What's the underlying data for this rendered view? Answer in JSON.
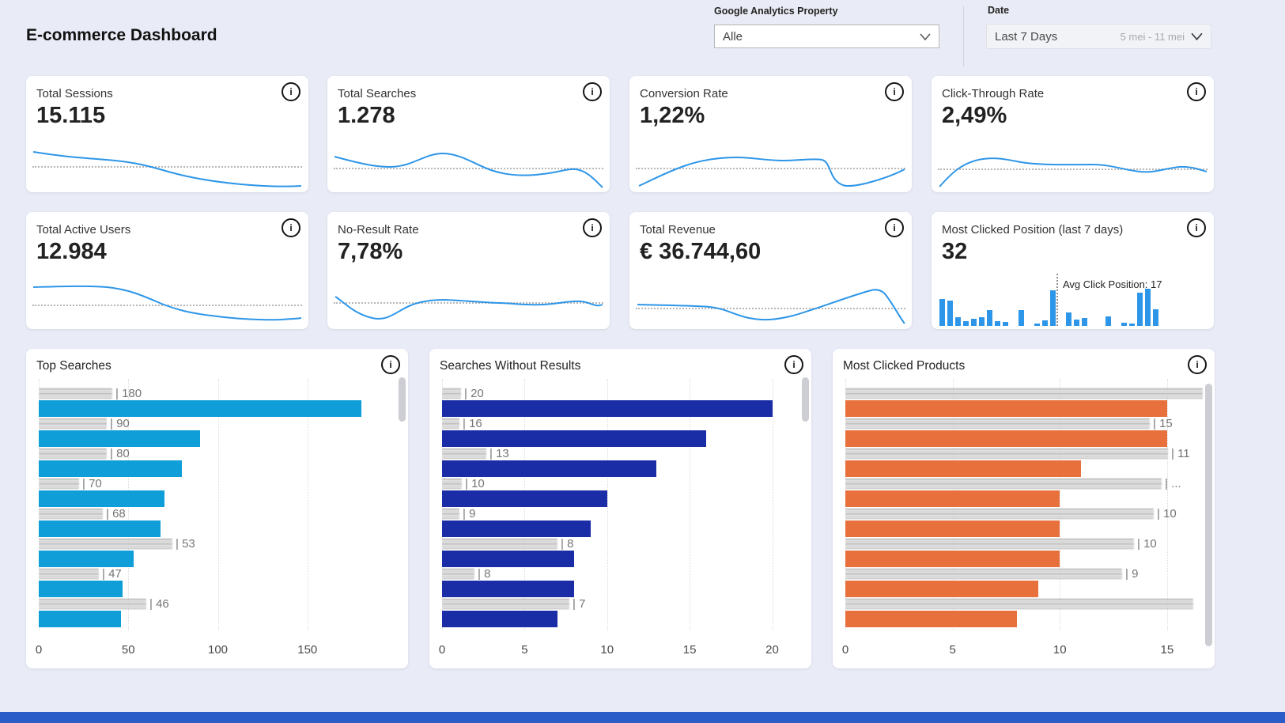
{
  "header": {
    "title": "E-commerce Dashboard",
    "property_filter": {
      "label": "Google Analytics Property",
      "value": "Alle"
    },
    "date_filter": {
      "label": "Date",
      "value": "Last 7 Days",
      "range": "5 mei - 11 mei"
    }
  },
  "kpis": [
    {
      "title": "Total Sessions",
      "value": "15.115"
    },
    {
      "title": "Total Searches",
      "value": "1.278"
    },
    {
      "title": "Conversion Rate",
      "value": "1,22%"
    },
    {
      "title": "Click-Through Rate",
      "value": "2,49%"
    },
    {
      "title": "Total Active Users",
      "value": "12.984"
    },
    {
      "title": "No-Result Rate",
      "value": "7,78%"
    },
    {
      "title": "Total Revenue",
      "value": "€ 36.744,60"
    },
    {
      "title": "Most Clicked Position (last 7 days)",
      "value": "32",
      "annotation": "Avg Click Position: 17"
    }
  ],
  "colors": {
    "sparkline": "#2e96e8",
    "top_searches_bar": "#0f9ed8",
    "no_result_bar": "#1b2da6",
    "products_bar": "#e7703c",
    "minibar": "#2e96e8",
    "footer_strip": "#2a5dc8"
  },
  "chart_data": [
    {
      "type": "bar",
      "orientation": "horizontal",
      "title": "Top Searches",
      "categories_note": "search terms are redacted (blurred) in the screenshot",
      "values": [
        180,
        90,
        80,
        70,
        68,
        53,
        47,
        46
      ],
      "display_labels": [
        "| 180",
        "| 90",
        "| 80",
        "| 70",
        "| 68",
        "| 53",
        "| 47",
        "| 46"
      ],
      "blur_widths": [
        93,
        86,
        86,
        51,
        81,
        169,
        76,
        136
      ],
      "xticks": [
        0,
        50,
        100,
        150
      ],
      "xtick_labels": [
        "0",
        "50",
        "100",
        "150"
      ],
      "xmax": 200,
      "bar_color": "#0f9ed8"
    },
    {
      "type": "bar",
      "orientation": "horizontal",
      "title": "Searches Without Results",
      "categories_note": "search terms are redacted (blurred) in the screenshot",
      "values": [
        20,
        16,
        13,
        10,
        9,
        8,
        8,
        7
      ],
      "display_labels": [
        "| 20",
        "| 16",
        "| 13",
        "| 10",
        "| 9",
        "| 8",
        "| 8",
        "| 7"
      ],
      "blur_widths": [
        24,
        22,
        56,
        25,
        22,
        146,
        41,
        161
      ],
      "xticks": [
        0,
        5,
        10,
        15,
        20
      ],
      "xtick_labels": [
        "0",
        "5",
        "10",
        "15",
        "20"
      ],
      "xmax": 21.7,
      "bar_color": "#1b2da6"
    },
    {
      "type": "bar",
      "orientation": "horizontal",
      "title": "Most Clicked Products",
      "categories_note": "product names are redacted (blurred) in the screenshot",
      "values": [
        15,
        15,
        11,
        10,
        10,
        10,
        9,
        8
      ],
      "display_labels": [
        "",
        "| 15",
        "| 11",
        "| ...",
        "| 10",
        "| 10",
        "| 9",
        ""
      ],
      "blur_widths": [
        452,
        385,
        408,
        400,
        390,
        365,
        350,
        440
      ],
      "xticks": [
        0,
        5,
        10,
        15
      ],
      "xtick_labels": [
        "0",
        "5",
        "10",
        "15"
      ],
      "xmax": 16.7,
      "bar_color": "#e7703c"
    },
    {
      "type": "bar",
      "orientation": "vertical",
      "title": "Most Clicked Position (last 7 days)",
      "note": "click-position distribution, relative bar heights 0-1; dotted line marks average",
      "relative_heights": [
        0.57,
        0.53,
        0.18,
        0.1,
        0.15,
        0.18,
        0.33,
        0.1,
        0.08,
        0,
        0.33,
        0,
        0.05,
        0.12,
        0.75,
        0,
        0.28,
        0.13,
        0.17,
        0,
        0,
        0.2,
        0,
        0.07,
        0.05,
        0.7,
        0.78,
        0.35
      ],
      "annotation": "Avg Click Position: 17",
      "bar_color": "#2e96e8"
    }
  ]
}
